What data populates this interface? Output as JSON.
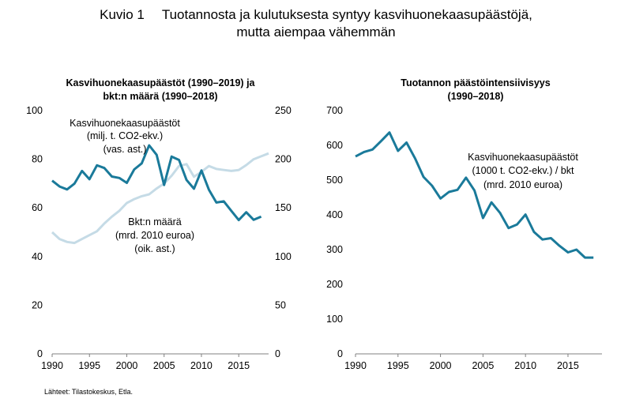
{
  "figure": {
    "number": "Kuvio 1",
    "title_line1": "Tuotannosta ja kulutuksesta syntyy kasvihuonekaasupäästöjä,",
    "title_line2": "mutta aiempaa vähemmän"
  },
  "source": "Lähteet: Tilastokeskus, Etla.",
  "colors": {
    "emissions": "#1a7a9a",
    "gdp": "#c5dbe6",
    "axis": "#808080"
  },
  "chart_data": [
    {
      "type": "line",
      "title": [
        "Kasvihuonekaasupäästöt (1990–2019) ja",
        "bkt:n määrä (1990–2018)"
      ],
      "xlim": [
        1990,
        2019
      ],
      "xticks": [
        "1990",
        "1995",
        "2000",
        "2005",
        "2010",
        "2015"
      ],
      "ylim_left": [
        0,
        100
      ],
      "yticks_left": [
        "0",
        "20",
        "40",
        "60",
        "80",
        "100"
      ],
      "ylim_right": [
        0,
        250
      ],
      "yticks_right": [
        "0",
        "50",
        "100",
        "150",
        "200",
        "250"
      ],
      "grid": false,
      "series": [
        {
          "axis": "left",
          "x": [
            1990,
            1991,
            1992,
            1993,
            1994,
            1995,
            1996,
            1997,
            1998,
            1999,
            2000,
            2001,
            2002,
            2003,
            2004,
            2005,
            2006,
            2007,
            2008,
            2009,
            2010,
            2011,
            2012,
            2013,
            2014,
            2015,
            2016,
            2017,
            2018,
            2019
          ],
          "values": [
            71.2,
            68.8,
            67.6,
            70.0,
            75.2,
            71.8,
            77.5,
            76.4,
            72.9,
            72.3,
            70.3,
            75.8,
            78.3,
            85.7,
            81.8,
            69.4,
            81.1,
            79.7,
            71.5,
            67.9,
            75.4,
            67.5,
            62.2,
            62.7,
            58.8,
            55.0,
            58.2,
            55.1,
            56.4,
            null
          ],
          "color_key": "emissions"
        },
        {
          "axis": "right",
          "x": [
            1990,
            1991,
            1992,
            1993,
            1994,
            1995,
            1996,
            1997,
            1998,
            1999,
            2000,
            2001,
            2002,
            2003,
            2004,
            2005,
            2006,
            2007,
            2008,
            2009,
            2010,
            2011,
            2012,
            2013,
            2014,
            2015,
            2016,
            2017,
            2018,
            2019
          ],
          "values": [
            125,
            118,
            115,
            114,
            118,
            122,
            126,
            134,
            141,
            147,
            155,
            159,
            162,
            164,
            170,
            175,
            183,
            193,
            195,
            182,
            187,
            193,
            190,
            189,
            188,
            189,
            194,
            200,
            203,
            206
          ],
          "color_key": "gdp"
        }
      ],
      "annotations": {
        "emissions": [
          "Kasvihuonekaasupäästöt",
          "(milj. t. CO2-ekv.)",
          "(vas. ast.)"
        ],
        "gdp": [
          "Bkt:n määrä",
          "(mrd. 2010 euroa)",
          "(oik. ast.)"
        ]
      }
    },
    {
      "type": "line",
      "title": [
        "Tuotannon päästöintensiivisyys",
        "(1990–2018)"
      ],
      "xlim": [
        1990,
        2019
      ],
      "xticks": [
        "1990",
        "1995",
        "2000",
        "2005",
        "2010",
        "2015"
      ],
      "ylim": [
        0,
        700
      ],
      "yticks": [
        "0",
        "100",
        "200",
        "300",
        "400",
        "500",
        "600",
        "700"
      ],
      "grid": false,
      "series": [
        {
          "x": [
            1990,
            1991,
            1992,
            1993,
            1994,
            1995,
            1996,
            1997,
            1998,
            1999,
            2000,
            2001,
            2002,
            2003,
            2004,
            2005,
            2006,
            2007,
            2008,
            2009,
            2010,
            2011,
            2012,
            2013,
            2014,
            2015,
            2016,
            2017,
            2018
          ],
          "values": [
            568,
            581,
            588,
            612,
            637,
            584,
            608,
            563,
            509,
            484,
            447,
            466,
            472,
            507,
            470,
            391,
            436,
            406,
            362,
            372,
            401,
            351,
            329,
            333,
            311,
            292,
            300,
            277,
            277
          ],
          "color_key": "emissions"
        }
      ],
      "annotations": {
        "intensity": [
          "Kasvihuonekaasupäästöt",
          "(1000 t. CO2-ekv.) / bkt",
          "(mrd. 2010 euroa)"
        ]
      }
    }
  ]
}
